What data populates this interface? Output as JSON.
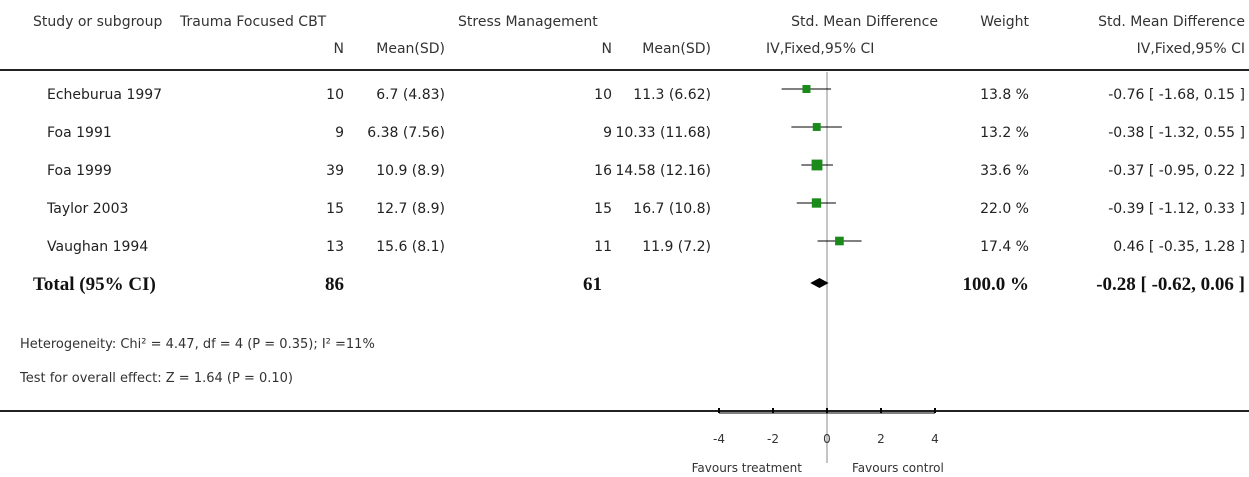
{
  "header": {
    "col_study": "Study or subgroup",
    "group1_name": "Trauma Focused CBT",
    "group2_name": "Stress Management",
    "effect_title": "Std. Mean Difference",
    "effect_method": "IV,Fixed,95% CI",
    "weight_title": "Weight",
    "effect_title2": "Std. Mean Difference",
    "effect_method2": "IV,Fixed,95% CI",
    "n_label": "N",
    "mean_sd_label": "Mean(SD)"
  },
  "rows": [
    {
      "study": "Echeburua 1997",
      "n1": "10",
      "ms1": "6.7 (4.83)",
      "n2": "10",
      "ms2": "11.3 (6.62)",
      "weight": "13.8 %",
      "ci_text": "-0.76 [ -1.68, 0.15 ]"
    },
    {
      "study": "Foa 1991",
      "n1": "9",
      "ms1": "6.38 (7.56)",
      "n2": "9",
      "ms2": "10.33 (11.68)",
      "weight": "13.2 %",
      "ci_text": "-0.38 [ -1.32, 0.55 ]"
    },
    {
      "study": "Foa 1999",
      "n1": "39",
      "ms1": "10.9 (8.9)",
      "n2": "16",
      "ms2": "14.58 (12.16)",
      "weight": "33.6 %",
      "ci_text": "-0.37 [ -0.95, 0.22 ]"
    },
    {
      "study": "Taylor 2003",
      "n1": "15",
      "ms1": "12.7 (8.9)",
      "n2": "15",
      "ms2": "16.7 (10.8)",
      "weight": "22.0 %",
      "ci_text": "-0.39 [ -1.12, 0.33 ]"
    },
    {
      "study": "Vaughan 1994",
      "n1": "13",
      "ms1": "15.6 (8.1)",
      "n2": "11",
      "ms2": "11.9 (7.2)",
      "weight": "17.4 %",
      "ci_text": "0.46 [ -0.35, 1.28 ]"
    }
  ],
  "total": {
    "label": "Total (95% CI)",
    "n1": "86",
    "n2": "61",
    "weight": "100.0 %",
    "ci_text": "-0.28 [ -0.62, 0.06 ]"
  },
  "heterogeneity": "Heterogeneity: Chi² = 4.47, df = 4 (P = 0.35); I² =11%",
  "overall_effect": "Test for overall effect: Z = 1.64 (P = 0.10)",
  "footer": {
    "favours_left": "Favours treatment",
    "favours_right": "Favours control"
  },
  "colors": {
    "marker": "#1a8a1a",
    "line": "#000000",
    "axis": "#888888"
  },
  "chart_data": {
    "type": "forest",
    "xlim": [
      -4,
      4
    ],
    "ticks": [
      -4,
      -2,
      0,
      2,
      4
    ],
    "tick_labels": [
      "-4",
      "-2",
      "0",
      "2",
      "4"
    ],
    "studies": [
      {
        "name": "Echeburua 1997",
        "estimate": -0.76,
        "lower": -1.68,
        "upper": 0.15,
        "weight": 13.8
      },
      {
        "name": "Foa 1991",
        "estimate": -0.38,
        "lower": -1.32,
        "upper": 0.55,
        "weight": 13.2
      },
      {
        "name": "Foa 1999",
        "estimate": -0.37,
        "lower": -0.95,
        "upper": 0.22,
        "weight": 33.6
      },
      {
        "name": "Taylor 2003",
        "estimate": -0.39,
        "lower": -1.12,
        "upper": 0.33,
        "weight": 22.0
      },
      {
        "name": "Vaughan 1994",
        "estimate": 0.46,
        "lower": -0.35,
        "upper": 1.28,
        "weight": 17.4
      }
    ],
    "pooled": {
      "estimate": -0.28,
      "lower": -0.62,
      "upper": 0.06
    }
  }
}
